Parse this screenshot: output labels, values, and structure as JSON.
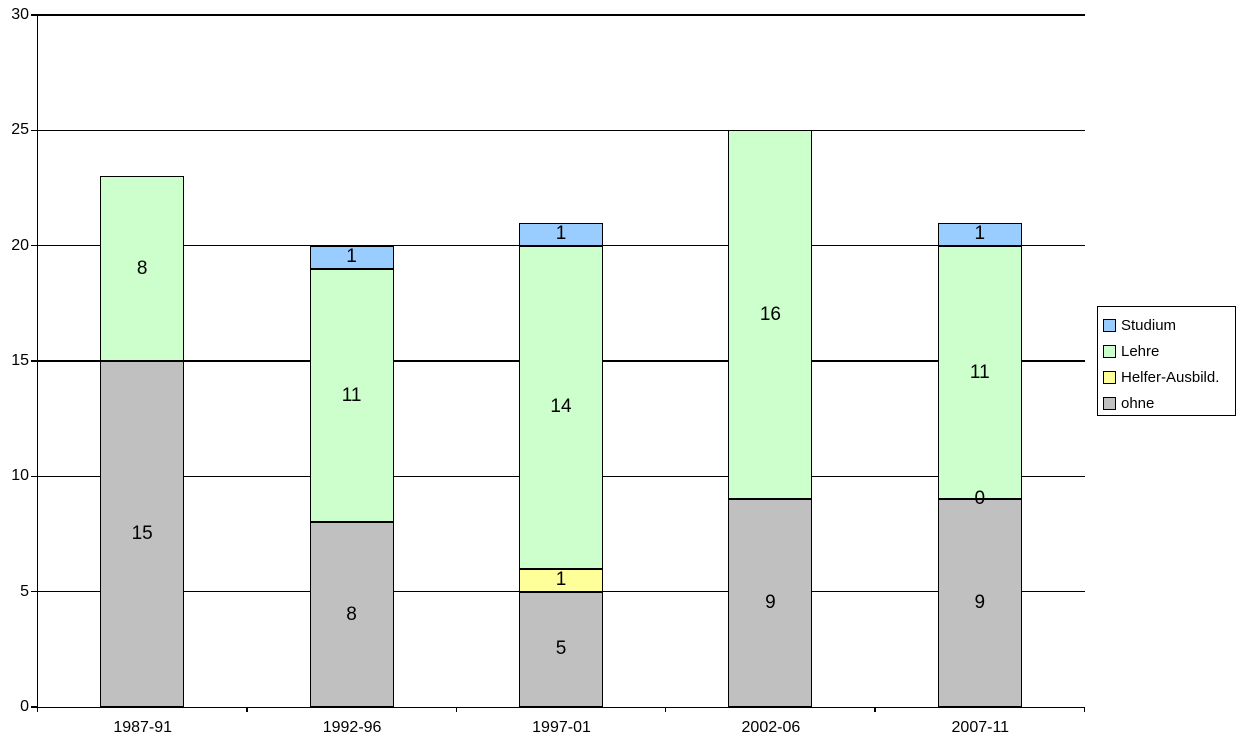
{
  "chart_data": {
    "type": "bar",
    "stacked": true,
    "title": "",
    "xlabel": "",
    "ylabel": "",
    "categories": [
      "1987-91",
      "1992-96",
      "1997-01",
      "2002-06",
      "2007-11"
    ],
    "series": [
      {
        "name": "ohne",
        "color": "#C0C0C0",
        "values": [
          15,
          8,
          5,
          9,
          9
        ],
        "labels": [
          "15",
          "8",
          "5",
          "9",
          "9"
        ]
      },
      {
        "name": "Helfer-Ausbild.",
        "color": "#FFFF99",
        "values": [
          0,
          0,
          1,
          0,
          0
        ],
        "labels": [
          null,
          null,
          "1",
          null,
          "0"
        ]
      },
      {
        "name": "Lehre",
        "color": "#CCFFCC",
        "values": [
          8,
          11,
          14,
          16,
          11
        ],
        "labels": [
          "8",
          "11",
          "14",
          "16",
          "11"
        ]
      },
      {
        "name": "Studium",
        "color": "#99CCFF",
        "values": [
          0,
          1,
          1,
          0,
          1
        ],
        "labels": [
          null,
          "1",
          "1",
          null,
          "1"
        ]
      }
    ],
    "ylim": [
      0,
      30
    ],
    "y_ticks": [
      "0",
      "5",
      "10",
      "15",
      "20",
      "25",
      "30"
    ],
    "grid": "horizontal",
    "legend": {
      "position": "right",
      "items": [
        {
          "label": "Studium",
          "color": "#99CCFF"
        },
        {
          "label": "Lehre",
          "color": "#CCFFCC"
        },
        {
          "label": "Helfer-Ausbild.",
          "color": "#FFFF99"
        },
        {
          "label": "ohne",
          "color": "#C0C0C0"
        }
      ]
    },
    "colors": {
      "axis": "#000000",
      "gridline": "#000000",
      "background": "#FFFFFF",
      "label_text": "#000000"
    }
  }
}
